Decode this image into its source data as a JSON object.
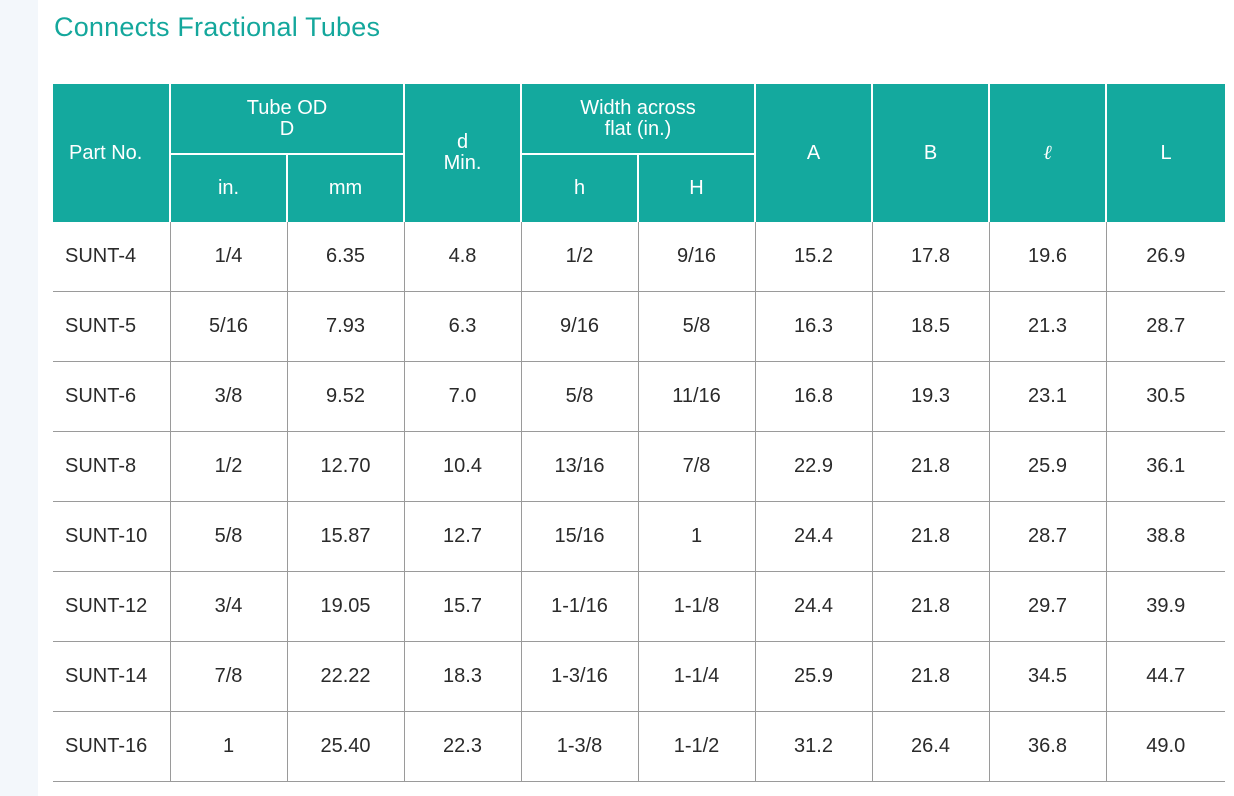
{
  "title": "Connects Fractional Tubes",
  "table": {
    "headers": {
      "part_no": "Part No.",
      "tube_od_line1": "Tube OD",
      "tube_od_line2": "D",
      "in": "in.",
      "mm": "mm",
      "d_line1": "d",
      "d_line2": "Min.",
      "width_line1": "Width across",
      "width_line2": "flat (in.)",
      "h_small": "h",
      "h_big": "H",
      "A": "A",
      "B": "B",
      "ell": "ℓ",
      "L": "L"
    },
    "rows": [
      {
        "part": "SUNT-4",
        "in": "1/4",
        "mm": "6.35",
        "d": "4.8",
        "h": "1/2",
        "H": "9/16",
        "A": "15.2",
        "B": "17.8",
        "l": "19.6",
        "L": "26.9"
      },
      {
        "part": "SUNT-5",
        "in": "5/16",
        "mm": "7.93",
        "d": "6.3",
        "h": "9/16",
        "H": "5/8",
        "A": "16.3",
        "B": "18.5",
        "l": "21.3",
        "L": "28.7"
      },
      {
        "part": "SUNT-6",
        "in": "3/8",
        "mm": "9.52",
        "d": "7.0",
        "h": "5/8",
        "H": "11/16",
        "A": "16.8",
        "B": "19.3",
        "l": "23.1",
        "L": "30.5"
      },
      {
        "part": "SUNT-8",
        "in": "1/2",
        "mm": "12.70",
        "d": "10.4",
        "h": "13/16",
        "H": "7/8",
        "A": "22.9",
        "B": "21.8",
        "l": "25.9",
        "L": "36.1"
      },
      {
        "part": "SUNT-10",
        "in": "5/8",
        "mm": "15.87",
        "d": "12.7",
        "h": "15/16",
        "H": "1",
        "A": "24.4",
        "B": "21.8",
        "l": "28.7",
        "L": "38.8"
      },
      {
        "part": "SUNT-12",
        "in": "3/4",
        "mm": "19.05",
        "d": "15.7",
        "h": "1-1/16",
        "H": "1-1/8",
        "A": "24.4",
        "B": "21.8",
        "l": "29.7",
        "L": "39.9"
      },
      {
        "part": "SUNT-14",
        "in": "7/8",
        "mm": "22.22",
        "d": "18.3",
        "h": "1-3/16",
        "H": "1-1/4",
        "A": "25.9",
        "B": "21.8",
        "l": "34.5",
        "L": "44.7"
      },
      {
        "part": "SUNT-16",
        "in": "1",
        "mm": "25.40",
        "d": "22.3",
        "h": "1-3/8",
        "H": "1-1/2",
        "A": "31.2",
        "B": "26.4",
        "l": "36.8",
        "L": "49.0"
      }
    ]
  },
  "colors": {
    "accent": "#14a99e",
    "title": "#14a79c",
    "grid": "#9a9a9a"
  }
}
